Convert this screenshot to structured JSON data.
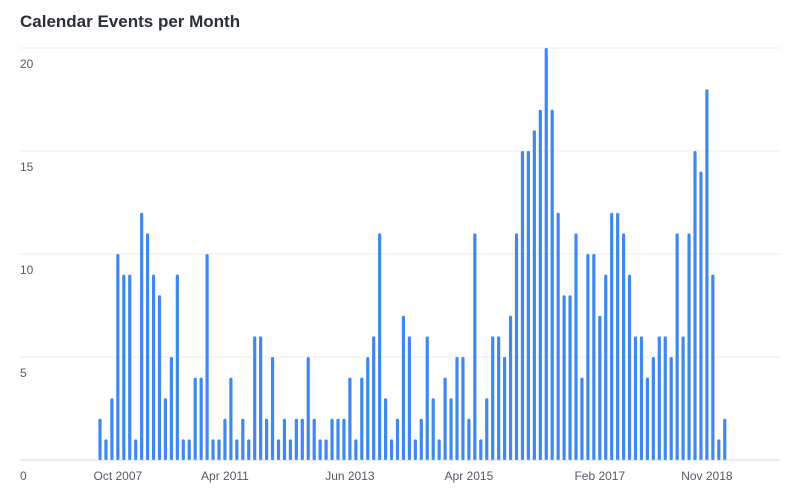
{
  "chart_data": {
    "type": "bar",
    "title": "Calendar Events per Month",
    "xlabel": "",
    "ylabel": "",
    "ylim": [
      0,
      20
    ],
    "yticks": [
      0,
      5,
      10,
      15,
      20
    ],
    "grid": true,
    "bar_color": "#3f88f2",
    "x_tick_labels": [
      {
        "label": "Oct 2007",
        "index": 3
      },
      {
        "label": "Apr 2011",
        "index": 21
      },
      {
        "label": "Jun 2013",
        "index": 42
      },
      {
        "label": "Apr 2015",
        "index": 62
      },
      {
        "label": "Feb 2017",
        "index": 84
      },
      {
        "label": "Nov 2018",
        "index": 102
      }
    ],
    "values": [
      2,
      1,
      3,
      10,
      9,
      9,
      1,
      12,
      11,
      9,
      8,
      3,
      5,
      9,
      1,
      1,
      4,
      4,
      10,
      1,
      1,
      2,
      4,
      1,
      2,
      1,
      6,
      6,
      2,
      5,
      1,
      2,
      1,
      2,
      2,
      5,
      2,
      1,
      1,
      2,
      2,
      2,
      4,
      1,
      4,
      5,
      6,
      11,
      3,
      1,
      2,
      7,
      6,
      1,
      2,
      6,
      3,
      1,
      4,
      3,
      5,
      5,
      2,
      11,
      1,
      3,
      6,
      6,
      5,
      7,
      11,
      15,
      15,
      16,
      17,
      20,
      17,
      12,
      8,
      8,
      11,
      4,
      10,
      10,
      7,
      9,
      12,
      12,
      11,
      9,
      6,
      6,
      4,
      5,
      6,
      6,
      5,
      11,
      6,
      11,
      15,
      14,
      18,
      9,
      1,
      2
    ]
  }
}
